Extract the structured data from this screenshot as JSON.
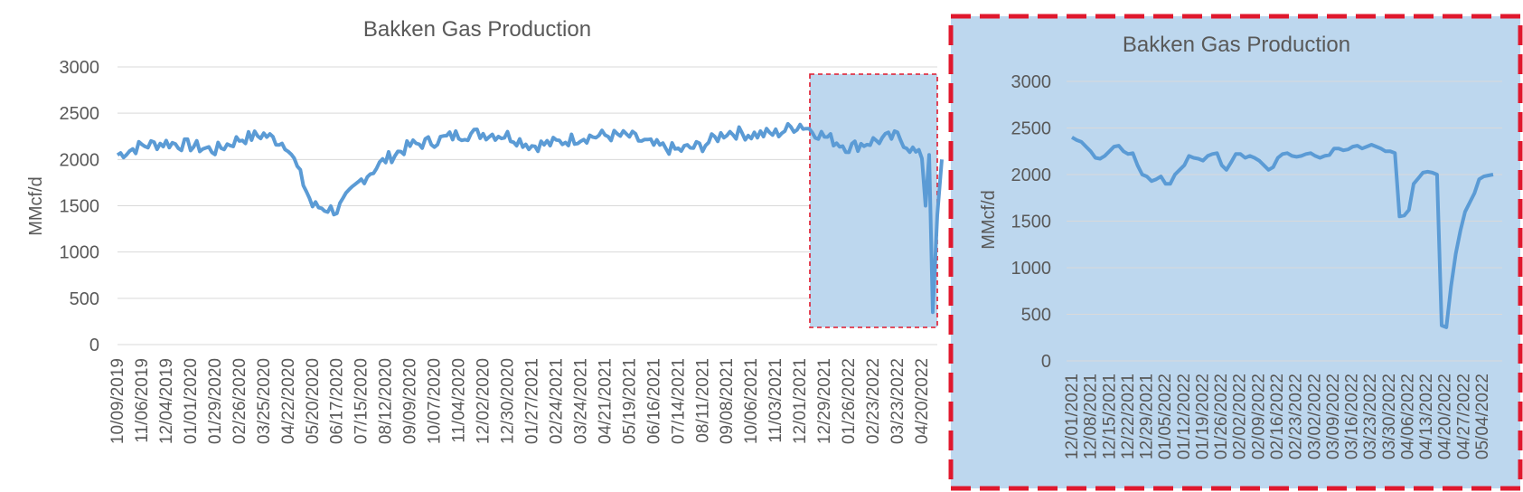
{
  "colors": {
    "line": "#5B9BD5",
    "grid": "#D9D9D9",
    "axis_text": "#595959",
    "highlight_fill": "#BDD7EE",
    "highlight_border": "#E0182D"
  },
  "chart_data": [
    {
      "type": "line",
      "title": "Bakken Gas Production",
      "ylabel": "MMcf/d",
      "ylim": [
        0,
        3000
      ],
      "yticks": [
        "0",
        "500",
        "1000",
        "1500",
        "2000",
        "2500",
        "3000"
      ],
      "grid": true,
      "x_tick_labels": [
        "10/09/2019",
        "11/06/2019",
        "12/04/2019",
        "01/01/2020",
        "01/29/2020",
        "02/26/2020",
        "03/25/2020",
        "04/22/2020",
        "05/20/2020",
        "06/17/2020",
        "07/15/2020",
        "08/12/2020",
        "09/09/2020",
        "10/07/2020",
        "11/04/2020",
        "12/02/2020",
        "12/30/2020",
        "01/27/2021",
        "02/24/2021",
        "03/24/2021",
        "04/21/2021",
        "05/19/2021",
        "06/16/2021",
        "07/14/2021",
        "08/11/2021",
        "09/08/2021",
        "10/06/2021",
        "11/03/2021",
        "12/01/2021",
        "12/29/2021",
        "01/26/2022",
        "02/23/2022",
        "03/23/2022",
        "04/20/2022"
      ],
      "series": [
        {
          "values_per_tick": [
            2050,
            2150,
            2180,
            2150,
            2100,
            2220,
            2270,
            2150,
            1500,
            1450,
            1780,
            2000,
            2150,
            2200,
            2270,
            2280,
            2260,
            2150,
            2180,
            2240,
            2260,
            2250,
            2150,
            2100,
            2150,
            2300,
            2270,
            2280,
            2380,
            2250,
            2130,
            2200,
            2250,
            2010
          ],
          "extra_end_values": [
            1500,
            2050,
            350,
            1400,
            2000
          ]
        }
      ]
    },
    {
      "type": "line",
      "title": "Bakken Gas Production",
      "ylabel": "MMcf/d",
      "ylim": [
        0,
        3000
      ],
      "yticks": [
        "0",
        "500",
        "1000",
        "1500",
        "2000",
        "2500",
        "3000"
      ],
      "grid": true,
      "x_tick_labels": [
        "12/01/2021",
        "12/08/2021",
        "12/15/2021",
        "12/22/2021",
        "12/29/2021",
        "01/05/2022",
        "01/12/2022",
        "01/19/2022",
        "01/26/2022",
        "02/02/2022",
        "02/09/2022",
        "02/16/2022",
        "02/23/2022",
        "03/02/2022",
        "03/09/2022",
        "03/16/2022",
        "03/23/2022",
        "03/30/2022",
        "04/06/2022",
        "04/13/2022",
        "04/20/2022",
        "04/27/2022",
        "05/04/2022"
      ],
      "series": [
        {
          "values": [
            2400,
            2370,
            2350,
            2300,
            2250,
            2180,
            2170,
            2200,
            2250,
            2300,
            2310,
            2250,
            2220,
            2230,
            2100,
            2000,
            1980,
            1930,
            1950,
            1980,
            1900,
            1900,
            2000,
            2050,
            2100,
            2200,
            2180,
            2170,
            2150,
            2200,
            2220,
            2230,
            2100,
            2050,
            2130,
            2220,
            2220,
            2180,
            2200,
            2180,
            2150,
            2100,
            2050,
            2080,
            2180,
            2220,
            2230,
            2200,
            2190,
            2200,
            2220,
            2230,
            2200,
            2180,
            2200,
            2210,
            2280,
            2280,
            2260,
            2270,
            2300,
            2310,
            2280,
            2300,
            2320,
            2300,
            2280,
            2250,
            2250,
            2230,
            1550,
            1560,
            1620,
            1900,
            1960,
            2020,
            2030,
            2020,
            2000,
            380,
            360,
            800,
            1150,
            1400,
            1600,
            1700,
            1800,
            1950,
            1980,
            1990,
            2000
          ],
          "start_date": "12/01/2021"
        }
      ]
    }
  ]
}
